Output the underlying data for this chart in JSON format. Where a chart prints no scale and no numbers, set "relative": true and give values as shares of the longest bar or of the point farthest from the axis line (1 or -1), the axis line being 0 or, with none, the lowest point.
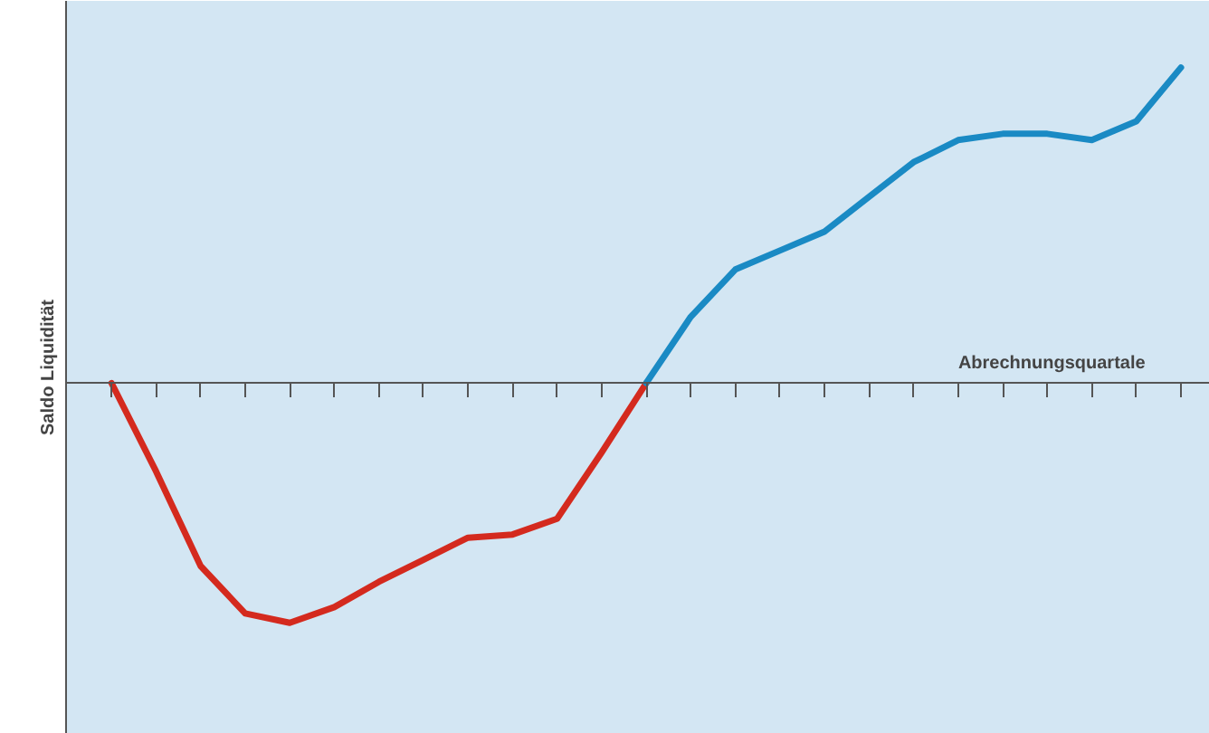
{
  "chart_data": {
    "type": "line",
    "relative": true,
    "xlabel": "Abrechnungsquartale",
    "ylabel": "Saldo Liquidität",
    "categories": [
      null,
      null,
      null,
      null,
      null,
      null,
      null,
      null,
      null,
      null,
      null,
      null,
      null,
      null,
      null,
      null,
      null,
      null,
      null,
      null,
      null,
      null,
      null,
      null,
      null
    ],
    "series": [
      {
        "color": "#d42a1e",
        "values": [
          0,
          -0.28,
          -0.58,
          -0.73,
          -0.76,
          -0.71,
          -0.63,
          -0.56,
          -0.49,
          -0.48,
          -0.43,
          -0.22,
          0,
          null,
          null,
          null,
          null,
          null,
          null,
          null,
          null,
          null,
          null,
          null,
          null
        ]
      },
      {
        "color": "#1a8ac4",
        "values": [
          null,
          null,
          null,
          null,
          null,
          null,
          null,
          null,
          null,
          null,
          null,
          null,
          0,
          0.21,
          0.36,
          0.42,
          0.48,
          0.59,
          0.7,
          0.77,
          0.79,
          0.79,
          0.77,
          0.83,
          1
        ]
      }
    ],
    "grid": false,
    "marker": "none",
    "line_style": "solid"
  }
}
